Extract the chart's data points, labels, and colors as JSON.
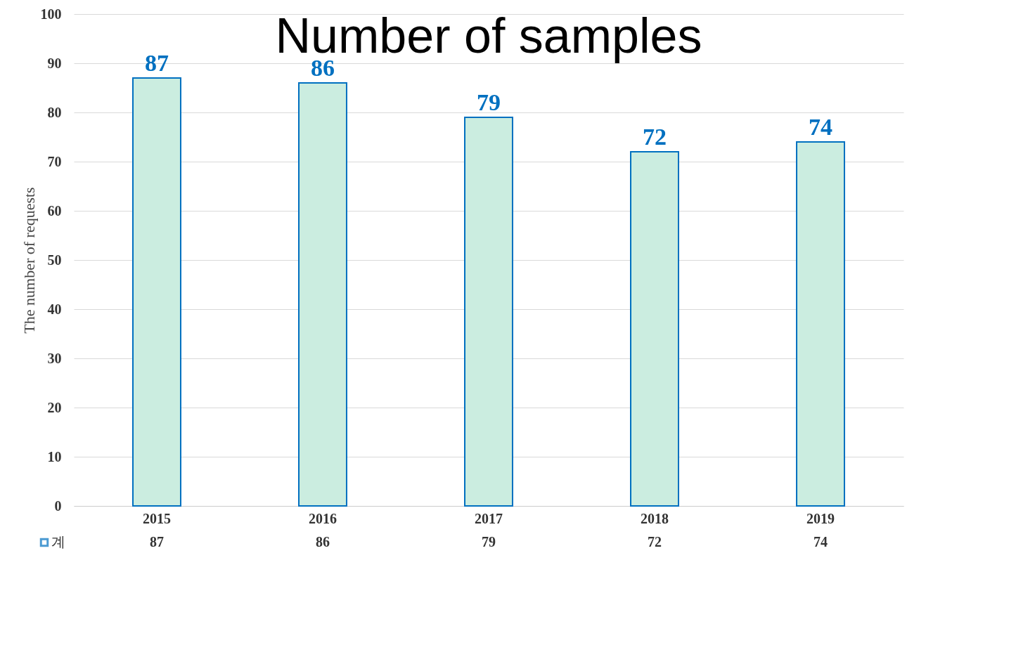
{
  "chart_data": {
    "type": "bar",
    "title": "Number of samples",
    "ylabel": "The number of requests",
    "categories": [
      "2015",
      "2016",
      "2017",
      "2018",
      "2019"
    ],
    "series": [
      {
        "name": "계",
        "color": "#cbede0",
        "values": [
          87,
          86,
          79,
          72,
          74
        ],
        "value_labels": [
          "87",
          "86",
          "79",
          "72",
          "74"
        ]
      }
    ],
    "ylim": [
      0,
      100
    ],
    "yticks": [
      0,
      10,
      20,
      30,
      40,
      50,
      60,
      70,
      80,
      90,
      100
    ],
    "annotations": [
      "87",
      "86",
      "79",
      "72",
      "74"
    ],
    "grid": "y",
    "data_labels": true,
    "legend": "bottom left"
  }
}
